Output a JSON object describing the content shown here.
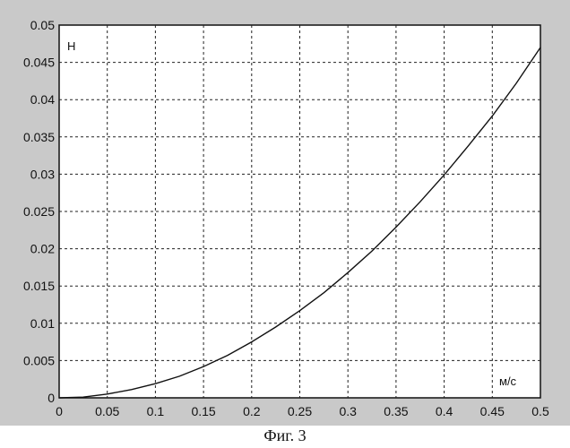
{
  "caption": "Фиг. 3",
  "chart_data": {
    "type": "line",
    "title": "",
    "ylabel": "Н",
    "xlabel": "м/с",
    "xlim": [
      0,
      0.5
    ],
    "ylim": [
      0,
      0.05
    ],
    "grid": true,
    "x_ticks": [
      "0",
      "0.05",
      "0.1",
      "0.15",
      "0.2",
      "0.25",
      "0.3",
      "0.35",
      "0.4",
      "0.45",
      "0.5"
    ],
    "y_ticks": [
      "0",
      "0.005",
      "0.01",
      "0.015",
      "0.02",
      "0.025",
      "0.03",
      "0.035",
      "0.04",
      "0.045",
      "0.05"
    ],
    "series": [
      {
        "x": [
          0,
          0.025,
          0.05,
          0.075,
          0.1,
          0.125,
          0.15,
          0.175,
          0.2,
          0.225,
          0.25,
          0.275,
          0.3,
          0.325,
          0.35,
          0.375,
          0.4,
          0.425,
          0.45,
          0.475,
          0.5
        ],
        "y": [
          0,
          0.0001,
          0.0005,
          0.0011,
          0.0019,
          0.0029,
          0.0042,
          0.0057,
          0.0075,
          0.0095,
          0.0117,
          0.0141,
          0.0168,
          0.0197,
          0.0229,
          0.0263,
          0.0299,
          0.0338,
          0.0378,
          0.0422,
          0.047
        ]
      }
    ],
    "colors": {
      "background": "#c9c9c9",
      "plot": "#ffffff",
      "line": "#111111",
      "grid": "#222222"
    }
  }
}
